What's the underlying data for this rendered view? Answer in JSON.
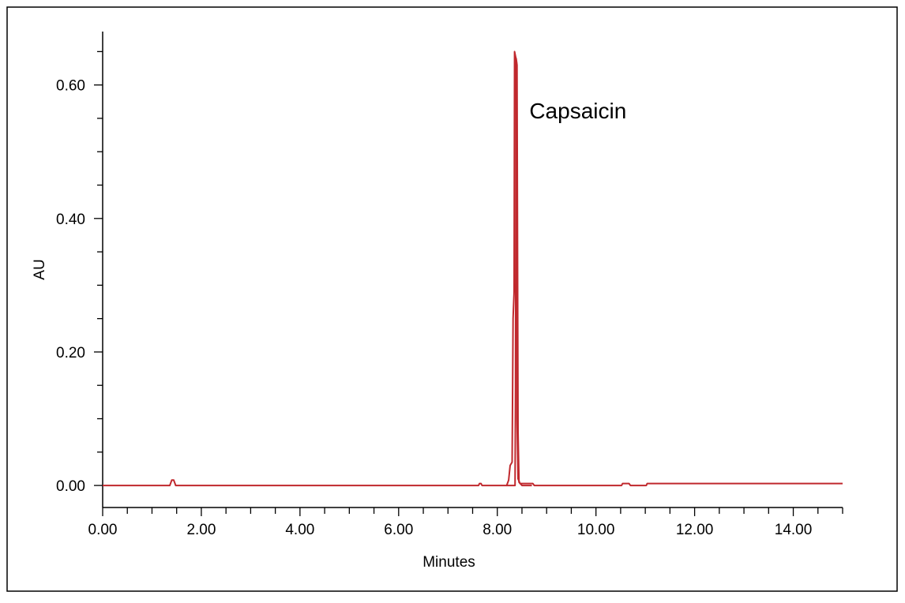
{
  "chart_data": {
    "type": "line",
    "title": "",
    "xlabel": "Minutes",
    "ylabel": "AU",
    "xlim": [
      0,
      15
    ],
    "ylim": [
      -0.033,
      0.68
    ],
    "x_ticks": [
      "0.00",
      "2.00",
      "4.00",
      "6.00",
      "8.00",
      "10.00",
      "12.00",
      "14.00"
    ],
    "x_tick_values": [
      0,
      2,
      4,
      6,
      8,
      10,
      12,
      14
    ],
    "y_ticks": [
      "0.00",
      "0.20",
      "0.40",
      "0.60"
    ],
    "y_tick_values": [
      0,
      0.2,
      0.4,
      0.6
    ],
    "grid": false,
    "legend": "none",
    "series": [
      {
        "color": "#c0282d",
        "points": [
          [
            0.0,
            0.0
          ],
          [
            1.36,
            0.0
          ],
          [
            1.4,
            0.008
          ],
          [
            1.44,
            0.008
          ],
          [
            1.48,
            0.0
          ],
          [
            7.62,
            0.0
          ],
          [
            7.64,
            0.003
          ],
          [
            7.67,
            0.003
          ],
          [
            7.69,
            0.0
          ],
          [
            8.19,
            0.0
          ],
          [
            8.23,
            0.008
          ],
          [
            8.26,
            0.03
          ],
          [
            8.3,
            0.035
          ],
          [
            8.32,
            0.25
          ],
          [
            8.34,
            0.29
          ],
          [
            8.35,
            0.65
          ],
          [
            8.39,
            0.635
          ],
          [
            8.4,
            0.1
          ],
          [
            8.42,
            0.01
          ],
          [
            8.46,
            0.003
          ],
          [
            8.72,
            0.003
          ],
          [
            8.75,
            0.0
          ],
          [
            10.52,
            0.0
          ],
          [
            10.54,
            0.003
          ],
          [
            10.67,
            0.003
          ],
          [
            10.7,
            0.0
          ],
          [
            11.02,
            0.0
          ],
          [
            11.04,
            0.003
          ],
          [
            15.0,
            0.003
          ]
        ]
      },
      {
        "color": "#c0282d",
        "points": [
          [
            8.19,
            0.0
          ],
          [
            8.36,
            0.0
          ],
          [
            8.37,
            0.15
          ],
          [
            8.38,
            0.64
          ],
          [
            8.4,
            0.63
          ],
          [
            8.42,
            0.08
          ],
          [
            8.44,
            0.005
          ],
          [
            8.5,
            0.0
          ],
          [
            8.7,
            0.0
          ]
        ]
      }
    ],
    "annotations": [
      {
        "text": "Capsaicin",
        "x": 8.65,
        "y": 0.55
      }
    ]
  }
}
